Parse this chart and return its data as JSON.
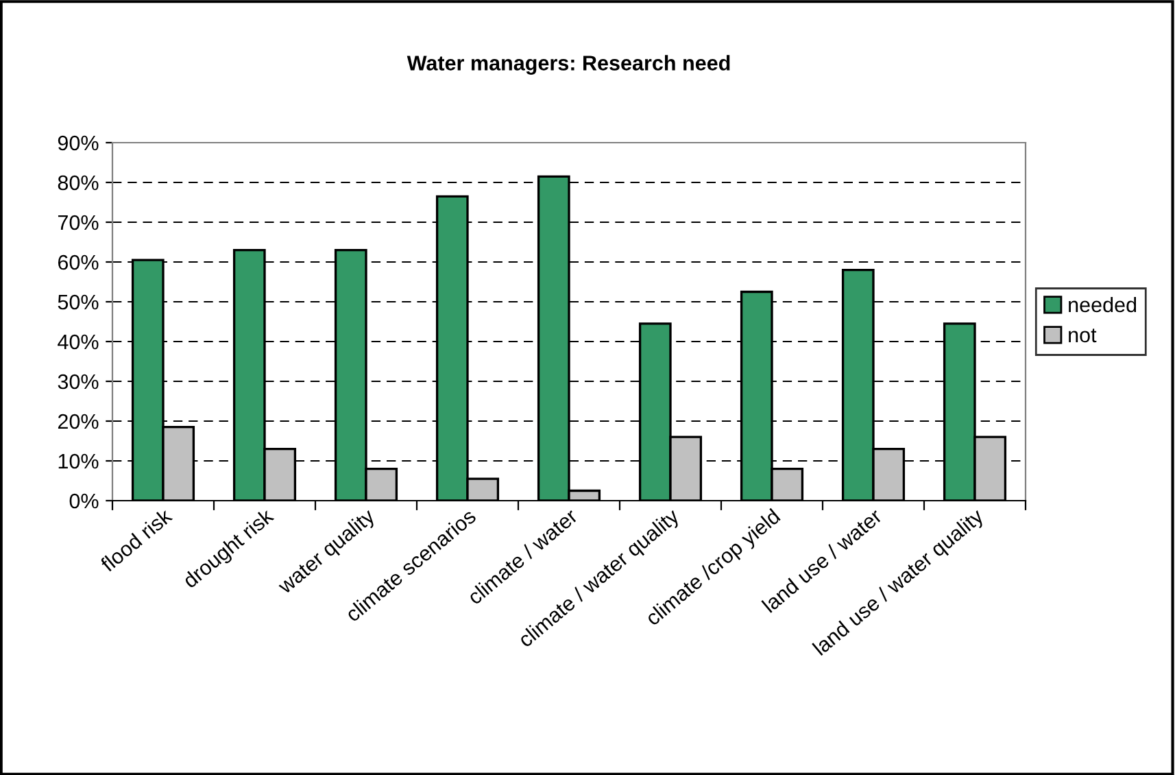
{
  "chart_data": {
    "type": "bar",
    "title": "Water managers: Research need",
    "categories": [
      "flood risk",
      "drought risk",
      "water quality",
      "climate scenarios",
      "climate / water",
      "climate / water quality",
      "climate /crop yield",
      "land use / water",
      "land use / water quality"
    ],
    "series": [
      {
        "name": "needed",
        "color": "#339966",
        "values": [
          60.5,
          63,
          63,
          76.5,
          81.5,
          44.5,
          52.5,
          58,
          44.5
        ]
      },
      {
        "name": "not",
        "color": "#c0c0c0",
        "values": [
          18.5,
          13,
          8,
          5.5,
          2.5,
          16,
          8,
          13,
          16
        ]
      }
    ],
    "ylim": [
      0,
      90
    ],
    "yticks": [
      {
        "value": 0,
        "label": "0%"
      },
      {
        "value": 10,
        "label": "10%"
      },
      {
        "value": 20,
        "label": "20%"
      },
      {
        "value": 30,
        "label": "30%"
      },
      {
        "value": 40,
        "label": "40%"
      },
      {
        "value": 50,
        "label": "50%"
      },
      {
        "value": 60,
        "label": "60%"
      },
      {
        "value": 70,
        "label": "70%"
      },
      {
        "value": 80,
        "label": "80%"
      },
      {
        "value": 90,
        "label": "90%"
      }
    ],
    "grid": "y",
    "legend": "right"
  }
}
